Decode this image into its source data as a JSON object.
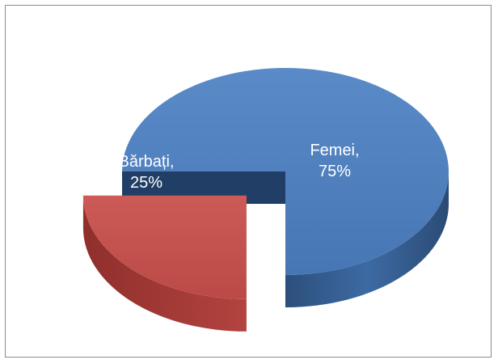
{
  "chart_data": {
    "type": "pie",
    "style": "3d-exploded",
    "slices": [
      {
        "label": "Femei",
        "value": 75,
        "display": "75%",
        "color": "#4f81bd",
        "exploded": false
      },
      {
        "label": "Bărbați",
        "value": 25,
        "display": "25%",
        "color": "#c0504d",
        "exploded": true
      }
    ],
    "legend": "none",
    "data_labels": "inside"
  }
}
